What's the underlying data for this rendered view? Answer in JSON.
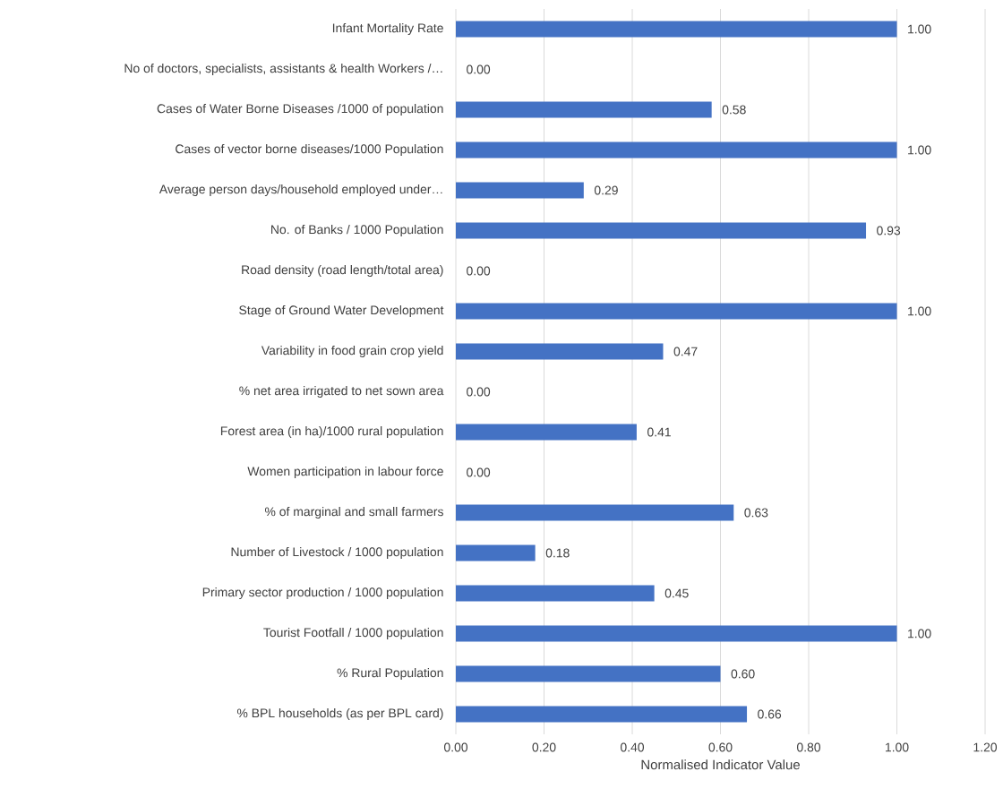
{
  "chart_data": {
    "type": "bar",
    "orientation": "horizontal",
    "xlabel": "Normalised Indicator Value",
    "categories": [
      "Infant Mortality Rate",
      "No of doctors, specialists, assistants & health Workers /…",
      "Cases of Water Borne Diseases /1000 of population",
      "Cases of vector borne diseases/1000 Population",
      "Average person days/household employed under…",
      "No. of Banks / 1000 Population",
      "Road density (road length/total area)",
      "Stage of Ground Water Development",
      "Variability in food grain crop yield",
      "% net area irrigated to net sown area",
      "Forest area (in ha)/1000 rural population",
      "Women participation in labour force",
      "% of marginal and small farmers",
      "Number of Livestock / 1000 population",
      "Primary sector production / 1000 population",
      "Tourist Footfall / 1000 population",
      "% Rural Population",
      "% BPL households (as per BPL card)"
    ],
    "values": [
      1.0,
      0.0,
      0.58,
      1.0,
      0.29,
      0.93,
      0.0,
      1.0,
      0.47,
      0.0,
      0.41,
      0.0,
      0.63,
      0.18,
      0.45,
      1.0,
      0.6,
      0.66
    ],
    "value_labels": [
      "1.00",
      "0.00",
      "0.58",
      "1.00",
      "0.29",
      "0.93",
      "0.00",
      "1.00",
      "0.47",
      "0.00",
      "0.41",
      "0.00",
      "0.63",
      "0.18",
      "0.45",
      "1.00",
      "0.60",
      "0.66"
    ],
    "color": "#4472c4",
    "xlim": [
      0,
      1.2
    ],
    "xticks": [
      {
        "value": 0,
        "label": "0.00"
      },
      {
        "value": 0.2,
        "label": "0.20"
      },
      {
        "value": 0.4,
        "label": "0.40"
      },
      {
        "value": 0.6,
        "label": "0.60"
      },
      {
        "value": 0.8,
        "label": "0.80"
      },
      {
        "value": 1.0,
        "label": "1.00"
      },
      {
        "value": 1.2,
        "label": "1.20"
      }
    ],
    "grid": "x"
  }
}
